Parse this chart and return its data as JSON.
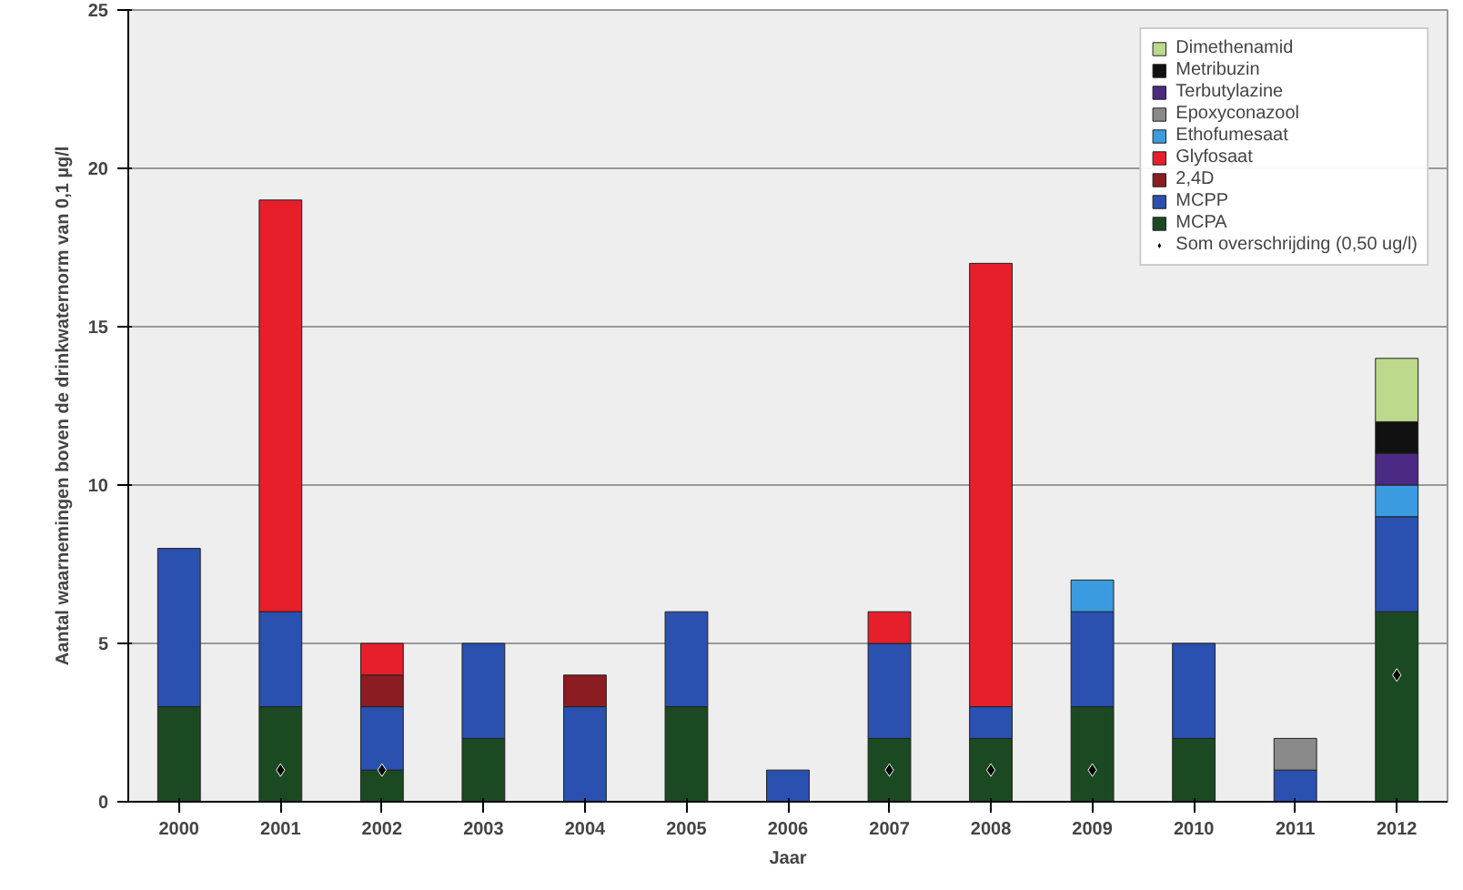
{
  "chart_data": {
    "type": "bar",
    "stacked": true,
    "xlabel": "Jaar",
    "ylabel": "Aantal waarnemingen boven de drinkwaternorm van 0,1 µg/l",
    "categories": [
      "2000",
      "2001",
      "2002",
      "2003",
      "2004",
      "2005",
      "2006",
      "2007",
      "2008",
      "2009",
      "2010",
      "2011",
      "2012"
    ],
    "ylim": [
      0,
      25
    ],
    "yticks": [
      0,
      5,
      10,
      15,
      20,
      25
    ],
    "grid": "y",
    "legend": "top right",
    "series": [
      {
        "name": "MCPA",
        "color": "#1b4a22",
        "values": [
          3,
          3,
          1,
          2,
          null,
          3,
          null,
          2,
          2,
          3,
          2,
          null,
          6
        ]
      },
      {
        "name": "MCPP",
        "color": "#2a50b0",
        "values": [
          5,
          3,
          2,
          3,
          3,
          3,
          1,
          3,
          1,
          3,
          3,
          1,
          3
        ]
      },
      {
        "name": "2,4D",
        "color": "#8b1c22",
        "values": [
          null,
          null,
          1,
          null,
          1,
          null,
          null,
          null,
          null,
          null,
          null,
          null,
          null
        ]
      },
      {
        "name": "Glyfosaat",
        "color": "#e61f2b",
        "values": [
          null,
          13,
          1,
          null,
          null,
          null,
          null,
          1,
          14,
          null,
          null,
          null,
          null
        ]
      },
      {
        "name": "Ethofumesaat",
        "color": "#3b9be0",
        "values": [
          null,
          null,
          null,
          null,
          null,
          null,
          null,
          null,
          null,
          1,
          null,
          null,
          1
        ]
      },
      {
        "name": "Epoxyconazool",
        "color": "#8a8a8a",
        "values": [
          null,
          null,
          null,
          null,
          null,
          null,
          null,
          null,
          null,
          null,
          null,
          1,
          null
        ]
      },
      {
        "name": "Terbutylazine",
        "color": "#4a2a82",
        "values": [
          null,
          null,
          null,
          null,
          null,
          null,
          null,
          null,
          null,
          null,
          null,
          null,
          1
        ]
      },
      {
        "name": "Metribuzin",
        "color": "#111111",
        "values": [
          null,
          null,
          null,
          null,
          null,
          null,
          null,
          null,
          null,
          null,
          null,
          null,
          1
        ]
      },
      {
        "name": "Dimethenamid",
        "color": "#bcd98c",
        "values": [
          null,
          null,
          null,
          null,
          null,
          null,
          null,
          null,
          null,
          null,
          null,
          null,
          2
        ]
      },
      {
        "name": "Som overschrijding (0,50 ug/l)",
        "type": "scatter",
        "marker": "diamond",
        "color": "#000000",
        "values": [
          null,
          1,
          1,
          null,
          null,
          null,
          null,
          1,
          1,
          1,
          null,
          null,
          4
        ]
      }
    ]
  }
}
